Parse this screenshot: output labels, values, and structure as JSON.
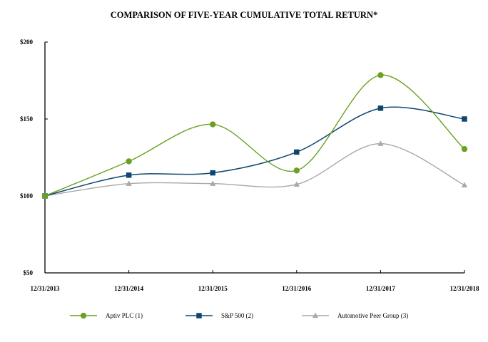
{
  "chart_data": {
    "type": "line",
    "title": "COMPARISON OF FIVE-YEAR CUMULATIVE TOTAL RETURN*",
    "xlabel": "",
    "ylabel": "",
    "categories": [
      "12/31/2013",
      "12/31/2014",
      "12/31/2015",
      "12/31/2016",
      "12/31/2017",
      "12/31/2018"
    ],
    "ylim": [
      50,
      200
    ],
    "yticks": [
      50,
      100,
      150,
      200
    ],
    "ytick_labels": [
      "$50",
      "$100",
      "$150",
      "$200"
    ],
    "grid": false,
    "legend_position": "bottom",
    "series": [
      {
        "name": "Aptiv PLC (1)",
        "color": "#6aa121",
        "marker": "circle",
        "values": [
          100,
          122.5,
          146.5,
          116.5,
          178.5,
          130.5
        ]
      },
      {
        "name": "S&P 500 (2)",
        "color": "#0e4670",
        "marker": "square",
        "values": [
          100,
          113.5,
          115,
          128.5,
          157,
          150
        ]
      },
      {
        "name": "Automotive Peer Group (3)",
        "color": "#a8a8a8",
        "marker": "triangle",
        "values": [
          100,
          108,
          108,
          107.5,
          134,
          107
        ]
      }
    ]
  }
}
